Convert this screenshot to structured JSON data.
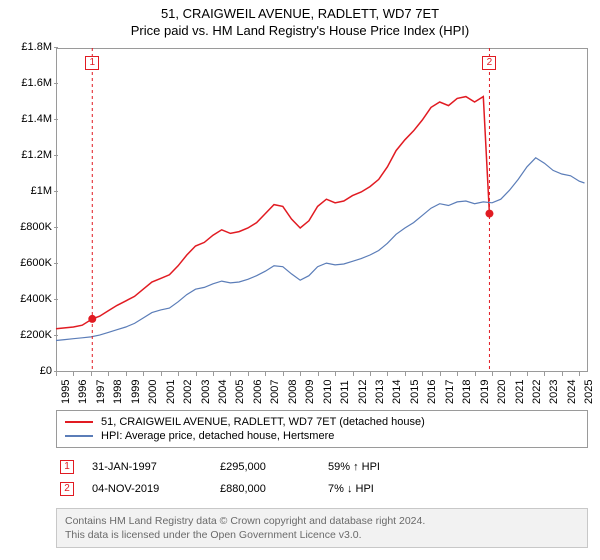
{
  "title": {
    "line1": "51, CRAIGWEIL AVENUE, RADLETT, WD7 7ET",
    "line2": "Price paid vs. HM Land Registry's House Price Index (HPI)"
  },
  "chart": {
    "type": "line",
    "background_color": "#ffffff",
    "border_color": "#9a9a9a",
    "grid_color": "#e8e8e8",
    "y": {
      "min": 0,
      "max": 1800000,
      "ticks": [
        0,
        200000,
        400000,
        600000,
        800000,
        1000000,
        1200000,
        1400000,
        1600000,
        1800000
      ],
      "tick_labels": [
        "£0",
        "£200K",
        "£400K",
        "£600K",
        "£800K",
        "£1M",
        "£1.2M",
        "£1.4M",
        "£1.6M",
        "£1.8M"
      ]
    },
    "x": {
      "min": 1995,
      "max": 2025.5,
      "ticks": [
        1995,
        1996,
        1997,
        1998,
        1999,
        2000,
        2001,
        2002,
        2003,
        2004,
        2005,
        2006,
        2007,
        2008,
        2009,
        2010,
        2011,
        2012,
        2013,
        2014,
        2015,
        2016,
        2017,
        2018,
        2019,
        2020,
        2021,
        2022,
        2023,
        2024,
        2025
      ]
    },
    "series": [
      {
        "name": "property",
        "label": "51, CRAIGWEIL AVENUE, RADLETT, WD7 7ET (detached house)",
        "color": "#e11b22",
        "width": 1.5,
        "points": [
          [
            1995.0,
            240000
          ],
          [
            1995.5,
            245000
          ],
          [
            1996.0,
            250000
          ],
          [
            1996.5,
            260000
          ],
          [
            1997.08,
            295000
          ],
          [
            1997.5,
            310000
          ],
          [
            1998.0,
            340000
          ],
          [
            1998.5,
            370000
          ],
          [
            1999.0,
            395000
          ],
          [
            1999.5,
            420000
          ],
          [
            2000.0,
            460000
          ],
          [
            2000.5,
            500000
          ],
          [
            2001.0,
            520000
          ],
          [
            2001.5,
            540000
          ],
          [
            2002.0,
            590000
          ],
          [
            2002.5,
            650000
          ],
          [
            2003.0,
            700000
          ],
          [
            2003.5,
            720000
          ],
          [
            2004.0,
            760000
          ],
          [
            2004.5,
            790000
          ],
          [
            2005.0,
            770000
          ],
          [
            2005.5,
            780000
          ],
          [
            2006.0,
            800000
          ],
          [
            2006.5,
            830000
          ],
          [
            2007.0,
            880000
          ],
          [
            2007.5,
            930000
          ],
          [
            2008.0,
            920000
          ],
          [
            2008.5,
            850000
          ],
          [
            2009.0,
            800000
          ],
          [
            2009.5,
            840000
          ],
          [
            2010.0,
            920000
          ],
          [
            2010.5,
            960000
          ],
          [
            2011.0,
            940000
          ],
          [
            2011.5,
            950000
          ],
          [
            2012.0,
            980000
          ],
          [
            2012.5,
            1000000
          ],
          [
            2013.0,
            1030000
          ],
          [
            2013.5,
            1070000
          ],
          [
            2014.0,
            1140000
          ],
          [
            2014.5,
            1230000
          ],
          [
            2015.0,
            1290000
          ],
          [
            2015.5,
            1340000
          ],
          [
            2016.0,
            1400000
          ],
          [
            2016.5,
            1470000
          ],
          [
            2017.0,
            1500000
          ],
          [
            2017.5,
            1480000
          ],
          [
            2018.0,
            1520000
          ],
          [
            2018.5,
            1530000
          ],
          [
            2019.0,
            1500000
          ],
          [
            2019.5,
            1530000
          ],
          [
            2019.85,
            880000
          ]
        ]
      },
      {
        "name": "hpi",
        "label": "HPI: Average price, detached house, Hertsmere",
        "color": "#5b7db8",
        "width": 1.2,
        "points": [
          [
            1995.0,
            175000
          ],
          [
            1995.5,
            180000
          ],
          [
            1996.0,
            185000
          ],
          [
            1996.5,
            190000
          ],
          [
            1997.0,
            195000
          ],
          [
            1997.5,
            205000
          ],
          [
            1998.0,
            220000
          ],
          [
            1998.5,
            235000
          ],
          [
            1999.0,
            250000
          ],
          [
            1999.5,
            270000
          ],
          [
            2000.0,
            300000
          ],
          [
            2000.5,
            330000
          ],
          [
            2001.0,
            345000
          ],
          [
            2001.5,
            355000
          ],
          [
            2002.0,
            390000
          ],
          [
            2002.5,
            430000
          ],
          [
            2003.0,
            460000
          ],
          [
            2003.5,
            470000
          ],
          [
            2004.0,
            490000
          ],
          [
            2004.5,
            505000
          ],
          [
            2005.0,
            495000
          ],
          [
            2005.5,
            500000
          ],
          [
            2006.0,
            515000
          ],
          [
            2006.5,
            535000
          ],
          [
            2007.0,
            560000
          ],
          [
            2007.5,
            590000
          ],
          [
            2008.0,
            585000
          ],
          [
            2008.5,
            545000
          ],
          [
            2009.0,
            510000
          ],
          [
            2009.5,
            535000
          ],
          [
            2010.0,
            585000
          ],
          [
            2010.5,
            605000
          ],
          [
            2011.0,
            595000
          ],
          [
            2011.5,
            600000
          ],
          [
            2012.0,
            615000
          ],
          [
            2012.5,
            630000
          ],
          [
            2013.0,
            650000
          ],
          [
            2013.5,
            675000
          ],
          [
            2014.0,
            715000
          ],
          [
            2014.5,
            765000
          ],
          [
            2015.0,
            800000
          ],
          [
            2015.5,
            830000
          ],
          [
            2016.0,
            870000
          ],
          [
            2016.5,
            910000
          ],
          [
            2017.0,
            935000
          ],
          [
            2017.5,
            925000
          ],
          [
            2018.0,
            945000
          ],
          [
            2018.5,
            950000
          ],
          [
            2019.0,
            935000
          ],
          [
            2019.5,
            945000
          ],
          [
            2020.0,
            940000
          ],
          [
            2020.5,
            960000
          ],
          [
            2021.0,
            1010000
          ],
          [
            2021.5,
            1070000
          ],
          [
            2022.0,
            1140000
          ],
          [
            2022.5,
            1190000
          ],
          [
            2023.0,
            1160000
          ],
          [
            2023.5,
            1120000
          ],
          [
            2024.0,
            1100000
          ],
          [
            2024.5,
            1090000
          ],
          [
            2025.0,
            1060000
          ],
          [
            2025.3,
            1050000
          ]
        ]
      }
    ],
    "sale_markers": [
      {
        "n": "1",
        "x": 1997.08,
        "y": 295000,
        "color": "#e11b22",
        "box_top_offset": -6
      },
      {
        "n": "2",
        "x": 2019.85,
        "y": 880000,
        "color": "#e11b22",
        "box_top_offset": -6
      }
    ]
  },
  "legend": {
    "items": [
      {
        "color": "#e11b22",
        "label": "51, CRAIGWEIL AVENUE, RADLETT, WD7 7ET (detached house)"
      },
      {
        "color": "#5b7db8",
        "label": "HPI: Average price, detached house, Hertsmere"
      }
    ]
  },
  "sales": [
    {
      "n": "1",
      "color": "#e11b22",
      "date": "31-JAN-1997",
      "price": "£295,000",
      "pct": "59% ↑ HPI"
    },
    {
      "n": "2",
      "color": "#e11b22",
      "date": "04-NOV-2019",
      "price": "£880,000",
      "pct": "7% ↓ HPI"
    }
  ],
  "footer": {
    "line1": "Contains HM Land Registry data © Crown copyright and database right 2024.",
    "line2": "This data is licensed under the Open Government Licence v3.0."
  }
}
